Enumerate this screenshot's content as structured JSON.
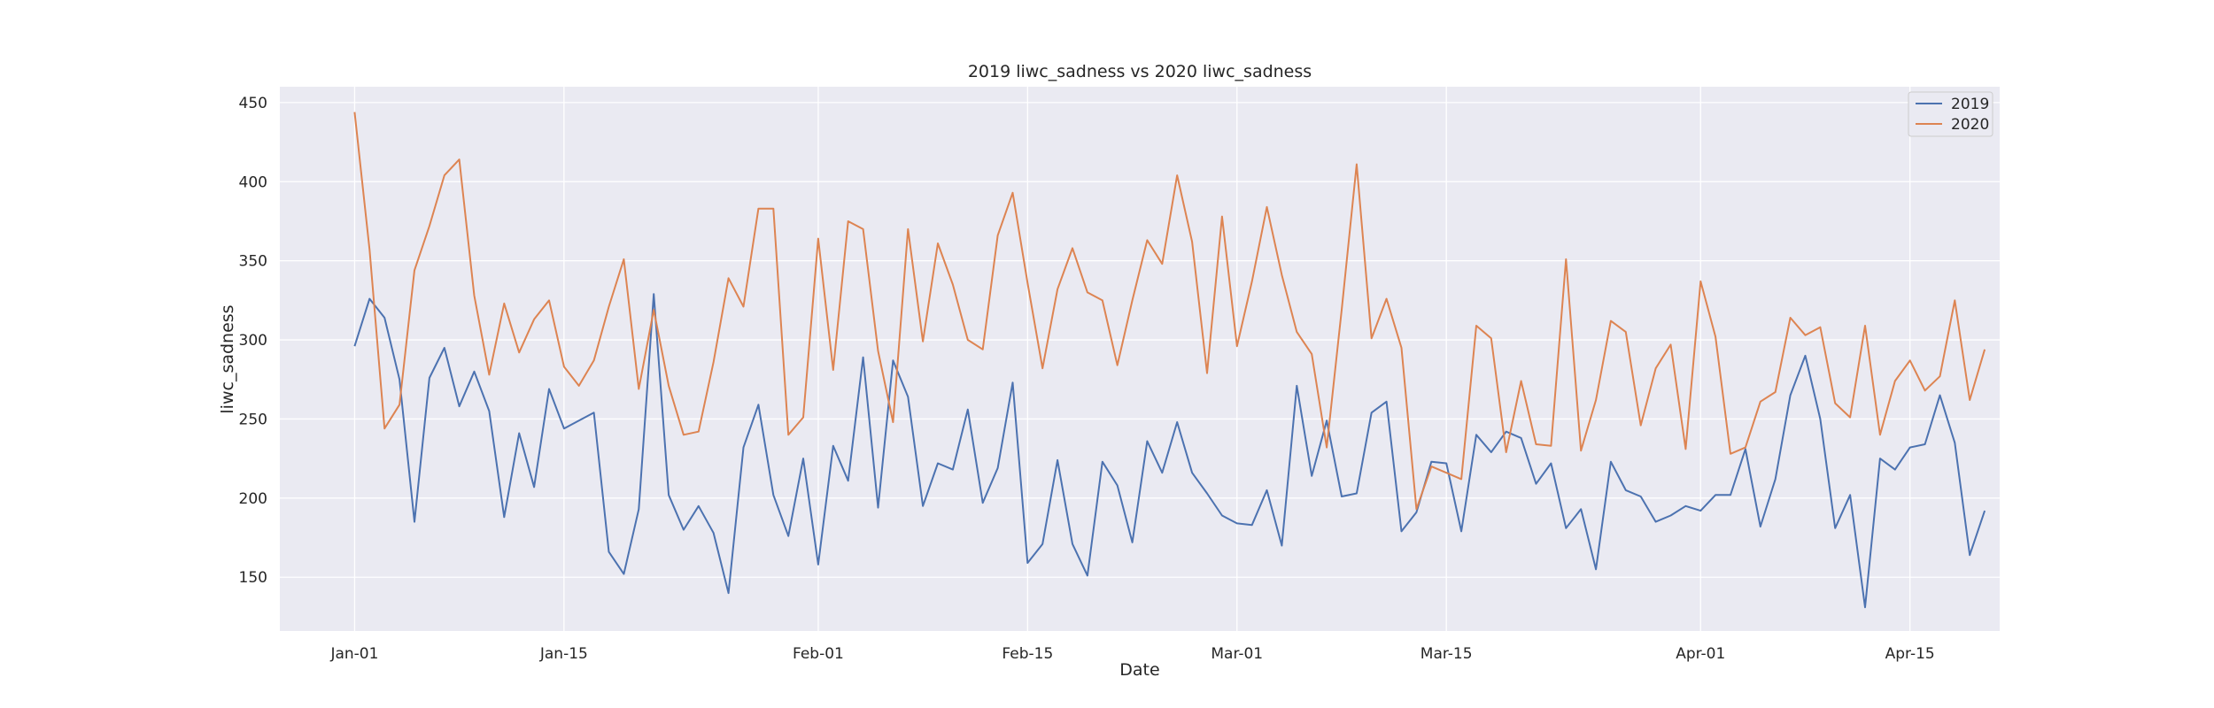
{
  "chart_data": {
    "type": "line",
    "title": "2019 liwc_sadness vs 2020 liwc_sadness",
    "xlabel": "Date",
    "ylabel": "liwc_sadness",
    "x_start": "Jan-01",
    "x_step_days": 1,
    "xlim": [
      -5,
      110
    ],
    "ylim": [
      116,
      460
    ],
    "x_ticks": [
      {
        "label": "Jan-01",
        "x": 0
      },
      {
        "label": "Jan-15",
        "x": 14
      },
      {
        "label": "Feb-01",
        "x": 31
      },
      {
        "label": "Feb-15",
        "x": 45
      },
      {
        "label": "Mar-01",
        "x": 59
      },
      {
        "label": "Mar-15",
        "x": 73
      },
      {
        "label": "Apr-01",
        "x": 90
      },
      {
        "label": "Apr-15",
        "x": 104
      }
    ],
    "y_ticks": [
      150,
      200,
      250,
      300,
      350,
      400,
      450
    ],
    "grid": true,
    "legend_position": "top-right",
    "series": [
      {
        "name": "2019",
        "color": "#4c72b0",
        "values": [
          296,
          326,
          314,
          275,
          185,
          276,
          295,
          258,
          280,
          255,
          188,
          241,
          207,
          269,
          244,
          249,
          254,
          166,
          152,
          193,
          329,
          202,
          180,
          195,
          178,
          140,
          232,
          259,
          202,
          176,
          225,
          158,
          233,
          211,
          289,
          194,
          287,
          264,
          195,
          222,
          218,
          256,
          197,
          219,
          273,
          159,
          171,
          224,
          171,
          151,
          223,
          208,
          172,
          236,
          216,
          248,
          216,
          203,
          189,
          184,
          183,
          205,
          170,
          271,
          214,
          249,
          201,
          203,
          254,
          261,
          179,
          191,
          223,
          222,
          179,
          240,
          229,
          242,
          238,
          209,
          222,
          181,
          193,
          155,
          223,
          205,
          201,
          185,
          189,
          195,
          192,
          202,
          202,
          231,
          182,
          212,
          265,
          290,
          250,
          181,
          202,
          131,
          225,
          218,
          232,
          234,
          265,
          235,
          164,
          192
        ]
      },
      {
        "name": "2020",
        "color": "#dd8452",
        "values": [
          444,
          357,
          244,
          259,
          344,
          372,
          404,
          414,
          328,
          278,
          323,
          292,
          313,
          325,
          283,
          271,
          287,
          321,
          351,
          269,
          319,
          271,
          240,
          242,
          286,
          339,
          321,
          383,
          383,
          240,
          251,
          364,
          281,
          375,
          370,
          293,
          248,
          370,
          299,
          361,
          335,
          300,
          294,
          366,
          393,
          336,
          282,
          332,
          358,
          330,
          325,
          284,
          325,
          363,
          348,
          404,
          362,
          279,
          378,
          296,
          337,
          384,
          341,
          305,
          291,
          232,
          319,
          411,
          301,
          326,
          295,
          193,
          220,
          216,
          212,
          309,
          301,
          229,
          274,
          234,
          233,
          351,
          230,
          262,
          312,
          305,
          246,
          282,
          297,
          231,
          337,
          302,
          228,
          232,
          261,
          267,
          314,
          303,
          308,
          260,
          251,
          309,
          240,
          274,
          287,
          268,
          277,
          325,
          262,
          294
        ]
      }
    ]
  }
}
